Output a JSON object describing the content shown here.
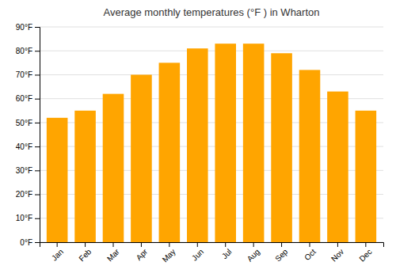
{
  "chart_data": {
    "type": "bar",
    "title": "Average monthly temperatures (°F ) in Wharton",
    "categories": [
      "Jan",
      "Feb",
      "Mar",
      "Apr",
      "May",
      "Jun",
      "Jul",
      "Aug",
      "Sep",
      "Oct",
      "Nov",
      "Dec"
    ],
    "values": [
      52,
      55,
      62,
      70,
      75,
      81,
      83,
      83,
      79,
      72,
      63,
      55
    ],
    "color": "#FFA500",
    "ylim": [
      0,
      90
    ],
    "yticks": [
      {
        "value": 0,
        "label": "0°F"
      },
      {
        "value": 10,
        "label": "10°F"
      },
      {
        "value": 20,
        "label": "20°F"
      },
      {
        "value": 30,
        "label": "30°F"
      },
      {
        "value": 40,
        "label": "40°F"
      },
      {
        "value": 50,
        "label": "50°F"
      },
      {
        "value": 60,
        "label": "60°F"
      },
      {
        "value": 70,
        "label": "70°F"
      },
      {
        "value": 80,
        "label": "80°F"
      },
      {
        "value": 90,
        "label": "90°F"
      }
    ],
    "grid": true
  }
}
